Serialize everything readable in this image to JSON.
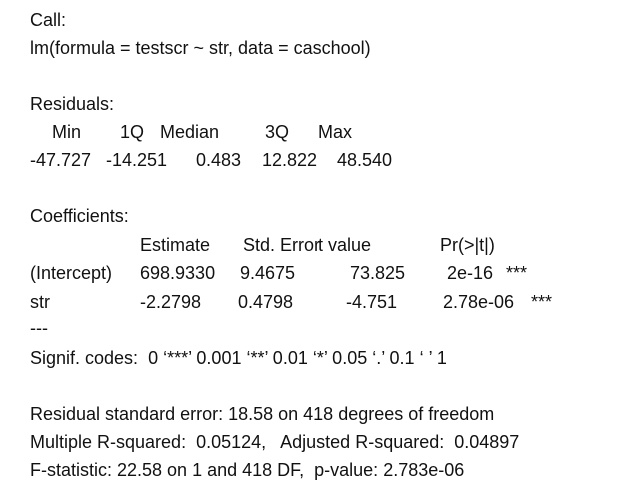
{
  "call": {
    "label": "Call:",
    "formula": "lm(formula = testscr ~ str, data = caschool)"
  },
  "residuals": {
    "label": "Residuals:",
    "headers": [
      "Min",
      "1Q",
      "Median",
      "3Q",
      "Max"
    ],
    "values": [
      "-47.727",
      "-14.251",
      "0.483",
      "12.822",
      "48.540"
    ]
  },
  "coefficients": {
    "label": "Coefficients:",
    "headers": [
      "Estimate",
      "Std. Error",
      "t value",
      "Pr(>|t|)"
    ],
    "rows": [
      [
        "(Intercept)",
        "698.9330",
        "9.4675",
        "73.825",
        "2e-16",
        "***"
      ],
      [
        "str",
        "-2.2798",
        "0.4798",
        "-4.751",
        "2.78e-06",
        "***"
      ]
    ]
  },
  "separator": "---",
  "signif": "Signif. codes:  0 ‘***’ 0.001 ‘**’ 0.01 ‘*’ 0.05 ‘.’ 0.1 ‘ ’ 1",
  "summary": [
    "Residual standard error: 18.58 on 418 degrees of freedom",
    "Multiple R-squared:  0.05124,   Adjusted R-squared:  0.04897",
    "F-statistic: 22.58 on 1 and 418 DF,  p-value: 2.783e-06"
  ]
}
